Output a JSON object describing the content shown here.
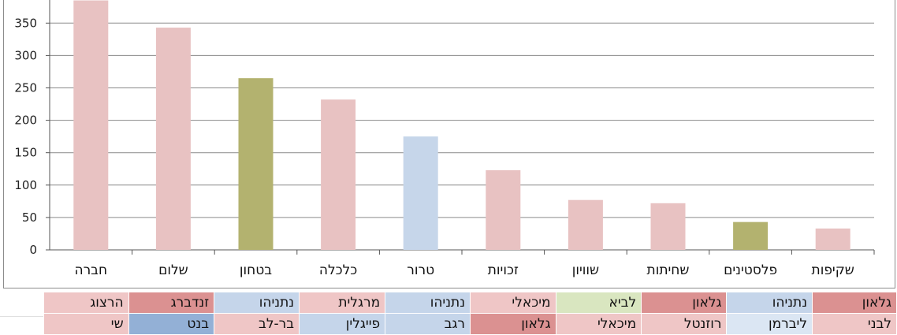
{
  "chart_data": {
    "type": "bar",
    "categories": [
      "חברה",
      "שלום",
      "בטחון",
      "כלכלה",
      "טרור",
      "זכויות",
      "שוויון",
      "שחיתות",
      "פלסטינים",
      "שקיפות"
    ],
    "values": [
      385,
      343,
      265,
      232,
      175,
      123,
      77,
      72,
      43,
      33
    ],
    "colors": [
      "#e8c2c2",
      "#e8c2c2",
      "#b3b26f",
      "#e8c2c2",
      "#c6d6ea",
      "#e8c2c2",
      "#e8c2c2",
      "#e8c2c2",
      "#b3b26f",
      "#e8c2c2"
    ],
    "yticks": [
      "0",
      "50",
      "100",
      "150",
      "200",
      "250",
      "300",
      "350"
    ],
    "ylim": [
      0,
      400
    ],
    "grid": true,
    "xlabel": "",
    "ylabel": "",
    "title": ""
  },
  "table": {
    "rows": [
      [
        {
          "text": "הרצוג",
          "color": "#efc6c6"
        },
        {
          "text": "זנדברג",
          "color": "#db9191"
        },
        {
          "text": "נתניהו",
          "color": "#c5d5ea"
        },
        {
          "text": "מרגלית",
          "color": "#efc6c6"
        },
        {
          "text": "נתניהו",
          "color": "#c5d5ea"
        },
        {
          "text": "מיכאלי",
          "color": "#efc6c6"
        },
        {
          "text": "לביא",
          "color": "#d9e6c0"
        },
        {
          "text": "גלאון",
          "color": "#db9191"
        },
        {
          "text": "נתניהו",
          "color": "#c5d5ea"
        },
        {
          "text": "גלאון",
          "color": "#db9191"
        }
      ],
      [
        {
          "text": "שי",
          "color": "#efc6c6"
        },
        {
          "text": "בנט",
          "color": "#93b0d6"
        },
        {
          "text": "בר-לב",
          "color": "#efc6c6"
        },
        {
          "text": "פייגלין",
          "color": "#c5d5ea"
        },
        {
          "text": "רגב",
          "color": "#c5d5ea"
        },
        {
          "text": "גלאון",
          "color": "#db9191"
        },
        {
          "text": "מיכאלי",
          "color": "#efc6c6"
        },
        {
          "text": "רוזנטל",
          "color": "#efc6c6"
        },
        {
          "text": "ליברמן",
          "color": "#dbe6f3"
        },
        {
          "text": "לבני",
          "color": "#efc6c6"
        }
      ]
    ]
  }
}
